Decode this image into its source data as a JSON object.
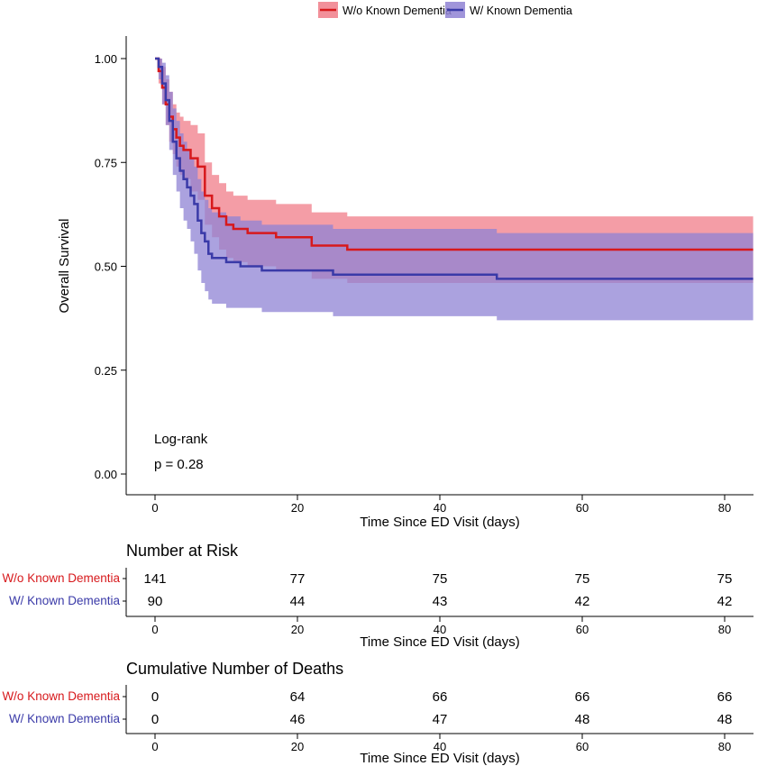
{
  "chart_data": [
    {
      "type": "line",
      "subtype": "kaplan-meier survival curve with confidence bands",
      "xlabel": "Time Since ED Visit (days)",
      "ylabel": "Overall Survival",
      "xlim": [
        -2,
        84
      ],
      "ylim": [
        -0.02,
        1.05
      ],
      "x_ticks": [
        0,
        20,
        40,
        60,
        80
      ],
      "y_ticks": [
        0,
        0.25,
        0.5,
        0.75,
        1.0
      ],
      "y_tick_labels": [
        "0.00",
        "0.25",
        "0.50",
        "0.75",
        "1.00"
      ],
      "grid": false,
      "legend_position": "top",
      "annotation": {
        "line1": "Log-rank",
        "line2": "p = 0.28"
      },
      "series": [
        {
          "name": "W/o Known Dementia",
          "color": "#d7191c",
          "band_color": "#f07c88",
          "x": [
            0,
            0.5,
            1,
            1.5,
            2,
            2.5,
            3,
            3.5,
            4,
            5,
            6,
            7,
            8,
            9,
            10,
            11,
            13,
            17,
            22,
            27,
            84
          ],
          "y": [
            1.0,
            0.97,
            0.93,
            0.89,
            0.86,
            0.83,
            0.81,
            0.79,
            0.78,
            0.76,
            0.74,
            0.67,
            0.64,
            0.62,
            0.6,
            0.59,
            0.58,
            0.57,
            0.55,
            0.54,
            0.54
          ],
          "lower": [
            1.0,
            0.94,
            0.89,
            0.84,
            0.8,
            0.77,
            0.74,
            0.72,
            0.71,
            0.68,
            0.66,
            0.6,
            0.57,
            0.54,
            0.52,
            0.51,
            0.5,
            0.49,
            0.47,
            0.46,
            0.46
          ],
          "upper": [
            1.0,
            1.0,
            0.98,
            0.95,
            0.92,
            0.89,
            0.87,
            0.86,
            0.85,
            0.84,
            0.82,
            0.75,
            0.72,
            0.7,
            0.68,
            0.67,
            0.66,
            0.65,
            0.63,
            0.62,
            0.62
          ]
        },
        {
          "name": "W/ Known Dementia",
          "color": "#3a3aa8",
          "band_color": "#8f83d4",
          "x": [
            0,
            0.5,
            1,
            1.5,
            2,
            2.5,
            3,
            3.5,
            4,
            4.5,
            5,
            5.5,
            6,
            6.5,
            7,
            7.5,
            8,
            10,
            12,
            15,
            25,
            48,
            84
          ],
          "y": [
            1.0,
            0.98,
            0.94,
            0.9,
            0.85,
            0.8,
            0.76,
            0.73,
            0.71,
            0.69,
            0.67,
            0.65,
            0.61,
            0.58,
            0.56,
            0.53,
            0.52,
            0.51,
            0.5,
            0.49,
            0.48,
            0.47,
            0.47
          ],
          "lower": [
            1.0,
            0.95,
            0.89,
            0.84,
            0.78,
            0.72,
            0.68,
            0.64,
            0.61,
            0.59,
            0.56,
            0.53,
            0.49,
            0.46,
            0.44,
            0.42,
            0.41,
            0.4,
            0.4,
            0.39,
            0.38,
            0.37,
            0.37
          ],
          "upper": [
            1.0,
            1.0,
            0.99,
            0.96,
            0.92,
            0.88,
            0.85,
            0.82,
            0.8,
            0.78,
            0.76,
            0.74,
            0.71,
            0.68,
            0.66,
            0.64,
            0.63,
            0.62,
            0.61,
            0.6,
            0.59,
            0.58,
            0.58
          ]
        }
      ]
    },
    {
      "type": "table",
      "title": "Number at Risk",
      "xlabel": "Time Since ED Visit (days)",
      "x_ticks": [
        0,
        20,
        40,
        60,
        80
      ],
      "rows": [
        {
          "name": "W/o Known Dementia",
          "color": "#d7191c",
          "values": [
            141,
            77,
            75,
            75,
            75
          ]
        },
        {
          "name": "W/ Known Dementia",
          "color": "#3a3aa8",
          "values": [
            90,
            44,
            43,
            42,
            42
          ]
        }
      ]
    },
    {
      "type": "table",
      "title": "Cumulative Number of Deaths",
      "xlabel": "Time Since ED Visit (days)",
      "x_ticks": [
        0,
        20,
        40,
        60,
        80
      ],
      "rows": [
        {
          "name": "W/o Known Dementia",
          "color": "#d7191c",
          "values": [
            0,
            64,
            66,
            66,
            66
          ]
        },
        {
          "name": "W/ Known Dementia",
          "color": "#3a3aa8",
          "values": [
            0,
            46,
            47,
            48,
            48
          ]
        }
      ]
    }
  ]
}
